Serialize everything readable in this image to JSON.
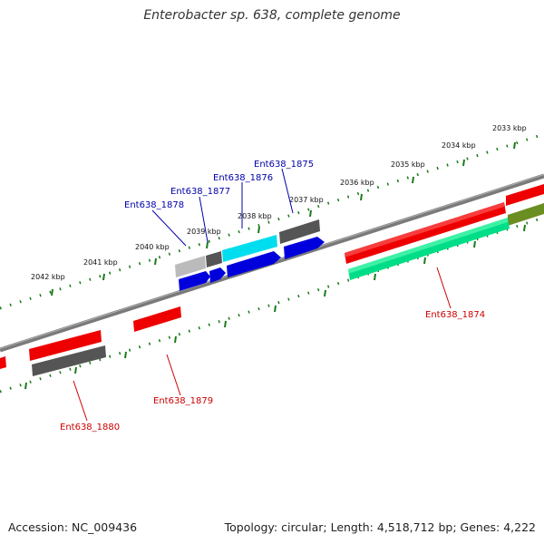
{
  "title": "Enterobacter sp. 638, complete genome",
  "footer": {
    "accession": "Accession: NC_009436",
    "summary": "Topology: circular; Length: 4,518,712 bp; Genes: 4,222"
  },
  "ruler": {
    "labels": [
      "2033 kbp",
      "2034 kbp",
      "2035 kbp",
      "2036 kbp",
      "2037 kbp",
      "2038 kbp",
      "2039 kbp",
      "2040 kbp",
      "2041 kbp",
      "2042 kbp"
    ]
  },
  "genes": [
    {
      "name": "Ent638_1874",
      "color": "#cc0000",
      "strand": "reverse"
    },
    {
      "name": "Ent638_1875",
      "color": "#0000aa",
      "strand": "forward"
    },
    {
      "name": "Ent638_1876",
      "color": "#0000aa",
      "strand": "forward"
    },
    {
      "name": "Ent638_1877",
      "color": "#0000aa",
      "strand": "forward"
    },
    {
      "name": "Ent638_1878",
      "color": "#0000aa",
      "strand": "forward"
    },
    {
      "name": "Ent638_1879",
      "color": "#cc0000",
      "strand": "reverse"
    },
    {
      "name": "Ent638_1880",
      "color": "#cc0000",
      "strand": "reverse"
    }
  ],
  "feature_colors": {
    "forward_cds": "#0000dd",
    "reverse_cds": "#ee0000",
    "gene": "#666666",
    "highlight_cyan": "#00ddee",
    "highlight_green": "#00dd88",
    "olive": "#6b8e23",
    "backbone": "#808080",
    "ruler_ticks": "#1a7a1a"
  }
}
